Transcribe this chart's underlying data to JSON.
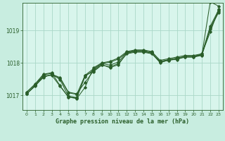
{
  "background_color": "#c8ede0",
  "plot_bg_color": "#d8f5ec",
  "grid_color": "#aad8c8",
  "line_color": "#2a5e2a",
  "text_color": "#2a5e2a",
  "xlabel": "Graphe pression niveau de la mer (hPa)",
  "xlim": [
    -0.5,
    23.5
  ],
  "ylim": [
    1016.55,
    1019.85
  ],
  "yticks": [
    1017,
    1018,
    1019
  ],
  "xticks": [
    0,
    1,
    2,
    3,
    4,
    5,
    6,
    7,
    8,
    9,
    10,
    11,
    12,
    13,
    14,
    15,
    16,
    17,
    18,
    19,
    20,
    21,
    22,
    23
  ],
  "series": [
    [
      1017.05,
      1017.3,
      1017.55,
      1017.65,
      1017.55,
      1017.1,
      1017.05,
      1017.4,
      1017.75,
      1017.95,
      1017.85,
      1017.95,
      1018.3,
      1018.35,
      1018.35,
      1018.3,
      1018.0,
      1018.1,
      1018.1,
      1018.2,
      1018.2,
      1018.25,
      1019.05,
      1019.55
    ],
    [
      1017.05,
      1017.28,
      1017.58,
      1017.63,
      1017.52,
      1017.08,
      1017.03,
      1017.62,
      1017.73,
      1017.93,
      1017.88,
      1017.98,
      1018.28,
      1018.33,
      1018.33,
      1018.28,
      1018.03,
      1018.08,
      1018.13,
      1018.18,
      1018.18,
      1018.23,
      1019.08,
      1019.58
    ],
    [
      1017.1,
      1017.33,
      1017.63,
      1017.68,
      1017.48,
      1016.98,
      1016.93,
      1017.58,
      1017.78,
      1017.98,
      1017.93,
      1018.03,
      1018.33,
      1018.38,
      1018.38,
      1018.33,
      1018.08,
      1018.13,
      1018.18,
      1018.23,
      1018.23,
      1018.28,
      1019.13,
      1019.63
    ],
    [
      1017.1,
      1017.35,
      1017.65,
      1017.7,
      1017.3,
      1016.95,
      1016.9,
      1017.25,
      1017.85,
      1018.0,
      1018.05,
      1018.15,
      1018.35,
      1018.4,
      1018.4,
      1018.35,
      1018.05,
      1018.1,
      1018.15,
      1018.2,
      1018.2,
      1018.28,
      1018.95,
      1019.65
    ],
    [
      1017.05,
      1017.3,
      1017.6,
      1017.62,
      1017.28,
      1016.95,
      1016.92,
      1017.62,
      1017.82,
      1017.98,
      1018.02,
      1018.12,
      1018.32,
      1018.36,
      1018.36,
      1018.3,
      1018.02,
      1018.08,
      1018.12,
      1018.18,
      1018.18,
      1018.25,
      1019.88,
      1019.75
    ]
  ]
}
